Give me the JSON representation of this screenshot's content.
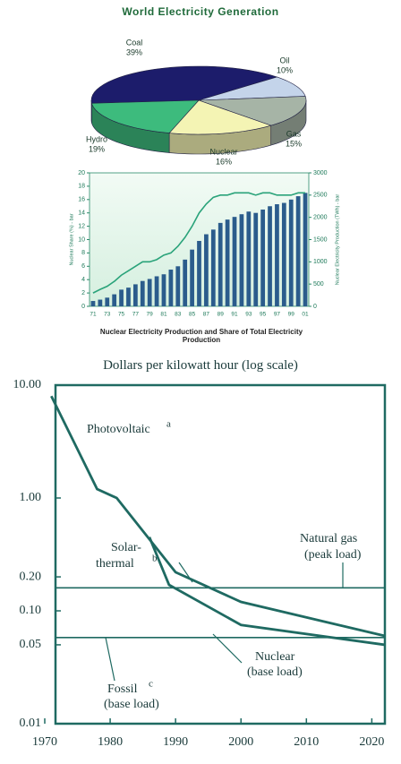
{
  "chart_data": [
    {
      "type": "pie",
      "title": "World Electricity Generation",
      "categories": [
        "Coal",
        "Oil",
        "Gas",
        "Nuclear",
        "Hydro"
      ],
      "values": [
        39,
        10,
        15,
        16,
        19
      ],
      "value_labels": [
        "39%",
        "10%",
        "15%",
        "16%",
        "19%"
      ],
      "colors": [
        "#1c1c6b",
        "#c4d4ea",
        "#a6b4a6",
        "#f4f4b4",
        "#3dbb7d"
      ]
    },
    {
      "type": "bar",
      "title": "Nuclear Electricity Production and Share of Total Electricity Production",
      "y_label": "Nuclear Share (%) - bar",
      "y2_label": "Nuclear Electricity Production (TWh) - bar",
      "categories": [
        "71",
        null,
        "73",
        null,
        "75",
        null,
        "77",
        null,
        "79",
        null,
        "81",
        null,
        "83",
        null,
        "85",
        null,
        "87",
        null,
        "89",
        null,
        "91",
        null,
        "93",
        null,
        "95",
        null,
        "97",
        null,
        "99",
        null,
        "01"
      ],
      "series": [
        {
          "color": "#2b5c8c",
          "values": [
            0.8,
            1.0,
            1.3,
            1.8,
            2.5,
            2.8,
            3.3,
            3.8,
            4.1,
            4.5,
            4.8,
            5.5,
            6.0,
            7.0,
            8.5,
            9.8,
            10.8,
            11.5,
            12.5,
            13.0,
            13.4,
            13.8,
            14.2,
            14.0,
            14.5,
            15.0,
            15.3,
            15.5,
            16.0,
            16.5,
            17.0
          ]
        },
        {
          "type": "line",
          "axis": "y2",
          "color": "#2aa37a",
          "values": [
            300,
            380,
            450,
            560,
            700,
            800,
            900,
            1000,
            1000,
            1050,
            1150,
            1200,
            1350,
            1550,
            1800,
            2100,
            2300,
            2450,
            2500,
            2500,
            2550,
            2550,
            2550,
            2500,
            2550,
            2550,
            2500,
            2500,
            2500,
            2550,
            2550
          ]
        }
      ],
      "ylim": [
        0,
        20
      ],
      "yticks": [
        0,
        2,
        4,
        6,
        8,
        10,
        12,
        14,
        16,
        18,
        20
      ],
      "y2lim": [
        0,
        3000
      ],
      "y2ticks": [
        0,
        500,
        1000,
        1500,
        2000,
        2500,
        3000
      ]
    },
    {
      "type": "line",
      "title": "Dollars per kilowatt hour (log scale)",
      "log_y": true,
      "xlim": [
        1970,
        2022
      ],
      "xticks": [
        1970,
        1980,
        1990,
        2000,
        2010,
        2020
      ],
      "ylim": [
        0.01,
        10
      ],
      "yticks": [
        {
          "value": 10,
          "label": "10.00"
        },
        {
          "value": 1,
          "label": "1.00"
        },
        {
          "value": 0.2,
          "label": "0.20"
        },
        {
          "value": 0.1,
          "label": "0.10"
        },
        0.05,
        0.01
      ],
      "color": "#1f6a62",
      "series": [
        {
          "label": [
            "Photovoltaic"
          ],
          "note": "a",
          "x": [
            1971,
            1978,
            1981,
            1990,
            2000,
            2022
          ],
          "values": [
            8,
            1.2,
            1.0,
            0.22,
            0.12,
            0.06
          ]
        },
        {
          "label": [
            "Solar-",
            "thermal"
          ],
          "note": "b",
          "x": [
            1986,
            1989,
            2000,
            2022
          ],
          "values": [
            0.45,
            0.17,
            0.075,
            0.05
          ]
        }
      ],
      "hlines": [
        {
          "label": [
            "Natural gas",
            "(peak load)"
          ],
          "value": 0.16
        },
        {
          "label": [
            "Fossil",
            "(base load)"
          ],
          "note": "c",
          "value": 0.058
        }
      ],
      "annotations": [
        [
          "Nuclear",
          "(base load)"
        ]
      ]
    }
  ]
}
